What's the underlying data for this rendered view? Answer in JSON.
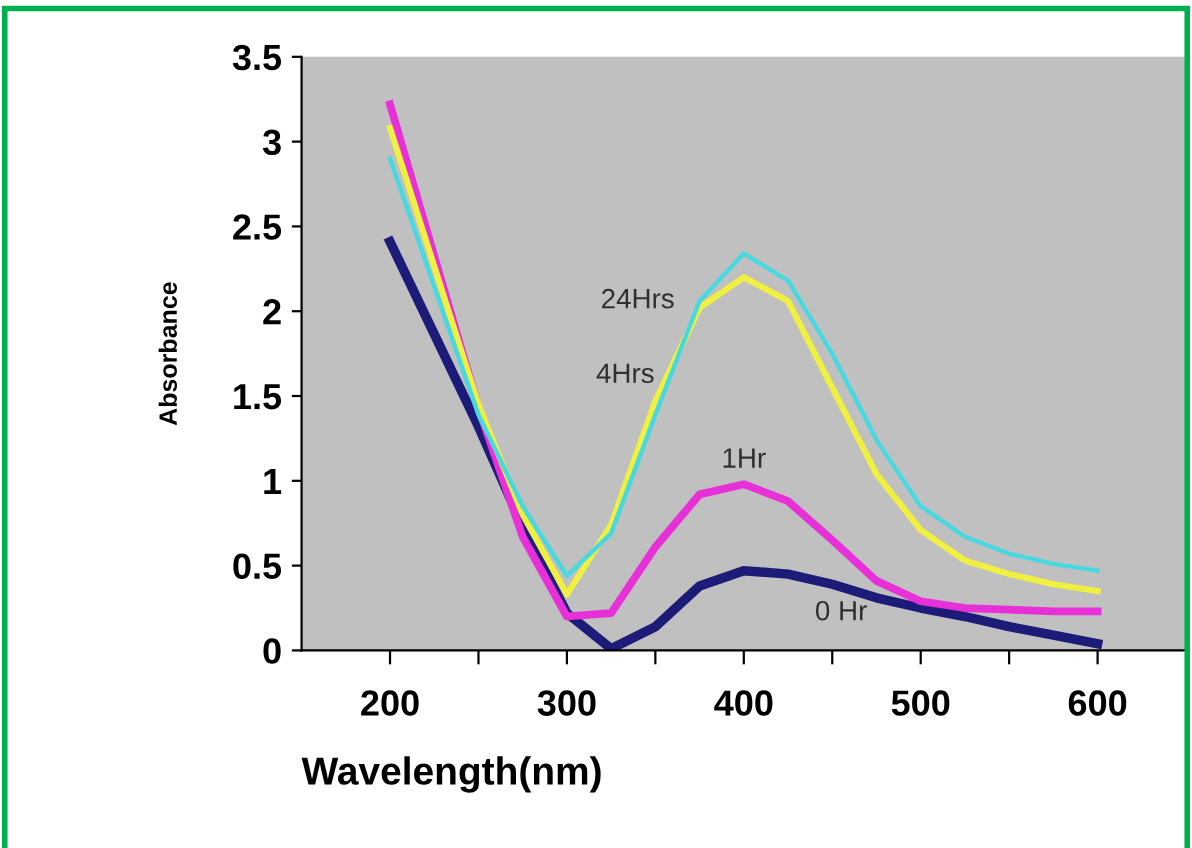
{
  "chart_data": {
    "type": "line",
    "xlabel": "Wavelength(nm)",
    "ylabel": "Absorbance",
    "x": [
      200,
      250,
      275,
      300,
      325,
      350,
      375,
      400,
      425,
      450,
      475,
      500,
      525,
      550,
      575,
      600
    ],
    "series": [
      {
        "name": "0 Hr",
        "color": "#1c1c78",
        "values": [
          2.41,
          1.32,
          0.73,
          0.22,
          0.01,
          0.14,
          0.38,
          0.47,
          0.45,
          0.39,
          0.31,
          0.25,
          0.2,
          0.14,
          0.09,
          0.04
        ]
      },
      {
        "name": "1Hr",
        "color": "#e830d8",
        "values": [
          3.22,
          1.43,
          0.67,
          0.2,
          0.22,
          0.61,
          0.92,
          0.98,
          0.88,
          0.65,
          0.41,
          0.29,
          0.25,
          0.24,
          0.23,
          0.23
        ]
      },
      {
        "name": "4Hrs",
        "color": "#f0f040",
        "values": [
          3.08,
          1.45,
          0.8,
          0.33,
          0.74,
          1.47,
          2.02,
          2.2,
          2.06,
          1.55,
          1.04,
          0.71,
          0.53,
          0.45,
          0.39,
          0.35
        ]
      },
      {
        "name": "24Hrs",
        "color": "#48d8e0",
        "values": [
          2.9,
          1.39,
          0.85,
          0.44,
          0.69,
          1.39,
          2.06,
          2.34,
          2.18,
          1.75,
          1.24,
          0.85,
          0.67,
          0.57,
          0.51,
          0.47
        ]
      }
    ],
    "xlim": [
      150,
      650
    ],
    "xticks": [
      {
        "value": 200,
        "label": "200"
      },
      {
        "value": 250,
        "label": null
      },
      {
        "value": 300,
        "label": "300"
      },
      {
        "value": 350,
        "label": null
      },
      {
        "value": 400,
        "label": "400"
      },
      {
        "value": 450,
        "label": null
      },
      {
        "value": 500,
        "label": "500"
      },
      {
        "value": 550,
        "label": null
      },
      {
        "value": 600,
        "label": "600"
      }
    ],
    "ylim": [
      0,
      3.5
    ],
    "yticks": [
      0,
      0.5,
      1,
      1.5,
      2,
      2.5,
      3,
      3.5
    ],
    "grid": false,
    "legend": false,
    "marker": "none",
    "line_style": "solid"
  }
}
